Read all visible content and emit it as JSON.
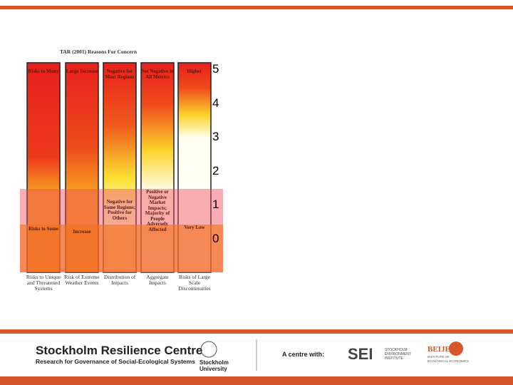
{
  "figure": {
    "title": "TAR (2001) Reasons For Concern",
    "columns": [
      {
        "top": "Risks to Many",
        "low": "Risks to Some",
        "bottom": "Risks to Unique and Threatened Systems"
      },
      {
        "top": "Large Increase",
        "low": "Increase",
        "bottom": "Risk of Extreme Weather Events"
      },
      {
        "top": "Negative for Most Regions",
        "low": "Negative for Some Regions; Positive for Others",
        "bottom": "Distribution of Impacts"
      },
      {
        "top": "Net Negative in All Metrics",
        "low": "Positive or Negative Market Impacts; Majority of People Adversely Affected",
        "bottom": "Aggregate Impacts"
      },
      {
        "top": "Higher",
        "low": "Very Low",
        "bottom": "Risks of Large Scale Discontinuities"
      }
    ],
    "scale": [
      5,
      4,
      3,
      2,
      1,
      0
    ]
  },
  "footer": {
    "centre": "Stockholm Resilience Centre",
    "centre_sub": "Research for Governance of Social-Ecological Systems",
    "university": "Stockholm University",
    "with": "A centre with:",
    "sei": "SEI",
    "sei_name": "STOCKHOLM ENVIRONMENT INSTITUTE",
    "beijer": "BEIJER",
    "beijer_name": "INSTITUTE OF ECOLOGICAL ECONOMICS"
  }
}
